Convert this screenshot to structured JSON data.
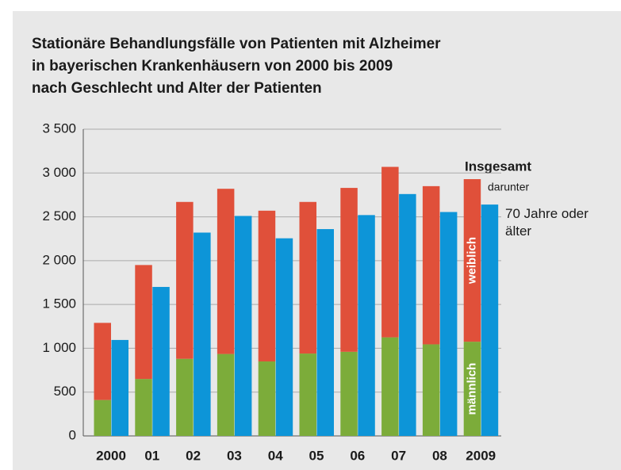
{
  "chart_data": {
    "type": "stacked_grouped_bar",
    "title_lines": [
      "Stationäre Behandlungsfälle von Patienten mit Alzheimer",
      "in bayerischen Krankenhäusern von 2000 bis 2009",
      "nach Geschlecht und Alter der Patienten"
    ],
    "categories": [
      "2000",
      "01",
      "02",
      "03",
      "04",
      "05",
      "06",
      "07",
      "08",
      "2009"
    ],
    "series": [
      {
        "name": "männlich",
        "color": "#7cac3a",
        "stack": "a",
        "values": [
          410,
          650,
          880,
          935,
          850,
          940,
          960,
          1125,
          1045,
          1075
        ]
      },
      {
        "name": "weiblich",
        "color": "#e0503a",
        "stack": "a",
        "values": [
          880,
          1300,
          1790,
          1885,
          1720,
          1730,
          1870,
          1945,
          1805,
          1855
        ]
      },
      {
        "name": "70 Jahre oder älter",
        "color": "#0d95d8",
        "stack": "b",
        "values": [
          1095,
          1700,
          2320,
          2510,
          2255,
          2360,
          2520,
          2760,
          2555,
          2640
        ]
      }
    ],
    "annotations": {
      "total": "Insgesamt",
      "among": "darunter"
    },
    "ylim": [
      0,
      3500
    ],
    "yticks": [
      0,
      500,
      {
        "value": 1000,
        "label": "1 000"
      },
      {
        "value": 1500,
        "label": "1 500"
      },
      {
        "value": 2000,
        "label": "2 000"
      },
      {
        "value": 2500,
        "label": "2 500"
      },
      {
        "value": 3000,
        "label": "3 000"
      },
      {
        "value": 3500,
        "label": "3 500"
      }
    ],
    "grid": true
  }
}
